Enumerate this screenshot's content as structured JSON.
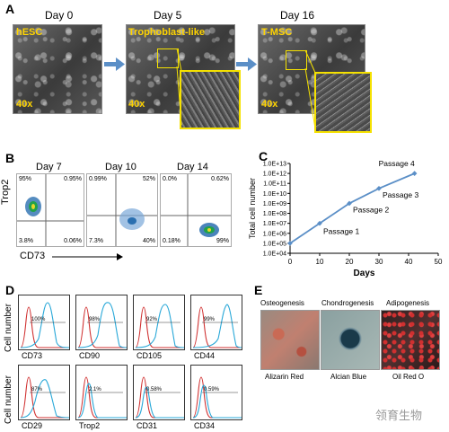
{
  "panels": {
    "a": "A",
    "b": "B",
    "c": "C",
    "d": "D",
    "e": "E"
  },
  "panel_a": {
    "days": [
      "Day 0",
      "Day 5",
      "Day 16"
    ],
    "image_labels": [
      "hESC",
      "Trophoblast-like",
      "T-MSC"
    ],
    "magnifications": [
      "40x",
      "40x",
      "40x"
    ],
    "label_color": "#ffd400",
    "arrow_color": "#5b8fc7"
  },
  "panel_b": {
    "days": [
      "Day 7",
      "Day 10",
      "Day 14"
    ],
    "y_axis": "Trop2",
    "x_axis": "CD73",
    "plots": [
      {
        "tl": "95%",
        "tr": "0.95%",
        "bl": "3.8%",
        "br": "0.06%"
      },
      {
        "tl": "0.99%",
        "tr": "52%",
        "bl": "7.3%",
        "br": "40%"
      },
      {
        "tl": "0.0%",
        "tr": "0.62%",
        "bl": "0.18%",
        "br": "99%"
      }
    ]
  },
  "chart_data": {
    "type": "line",
    "x": [
      0,
      10,
      20,
      30,
      42
    ],
    "y_log10": [
      5,
      7,
      9,
      10.5,
      12
    ],
    "xlabel": "Days",
    "ylabel": "Total cell number",
    "xlim": [
      0,
      50
    ],
    "ylim_log10": [
      4,
      13
    ],
    "log_scale": true,
    "x_ticks": [
      "0",
      "10",
      "20",
      "30",
      "40",
      "50"
    ],
    "y_ticks": [
      "1.0E+04",
      "1.0E+05",
      "1.0E+06",
      "1.0E+07",
      "1.0E+08",
      "1.0E+09",
      "1.0E+10",
      "1.0E+11",
      "1.0E+12",
      "1.0E+13"
    ],
    "annotations": [
      "Passage 1",
      "Passage 2",
      "Passage 3",
      "Passage 4"
    ],
    "color": "#5b8fc7",
    "grid": false
  },
  "panel_d": {
    "y_axis": "Cell number",
    "markers": [
      {
        "name": "CD73",
        "pct": "100%"
      },
      {
        "name": "CD90",
        "pct": "98%"
      },
      {
        "name": "CD105",
        "pct": "92%"
      },
      {
        "name": "CD44",
        "pct": "99%"
      },
      {
        "name": "CD29",
        "pct": "87%"
      },
      {
        "name": "Trop2",
        "pct": "2.1%"
      },
      {
        "name": "CD31",
        "pct": "0.58%"
      },
      {
        "name": "CD34",
        "pct": "0.59%"
      }
    ],
    "control_color": "#d03030",
    "sample_color": "#29a8d8"
  },
  "panel_e": {
    "titles": [
      "Osteogenesis",
      "Chondrogenesis",
      "Adipogenesis"
    ],
    "stains": [
      "Alizarin Red",
      "Alcian Blue",
      "Oil Red O"
    ]
  },
  "watermark": "领育生物"
}
